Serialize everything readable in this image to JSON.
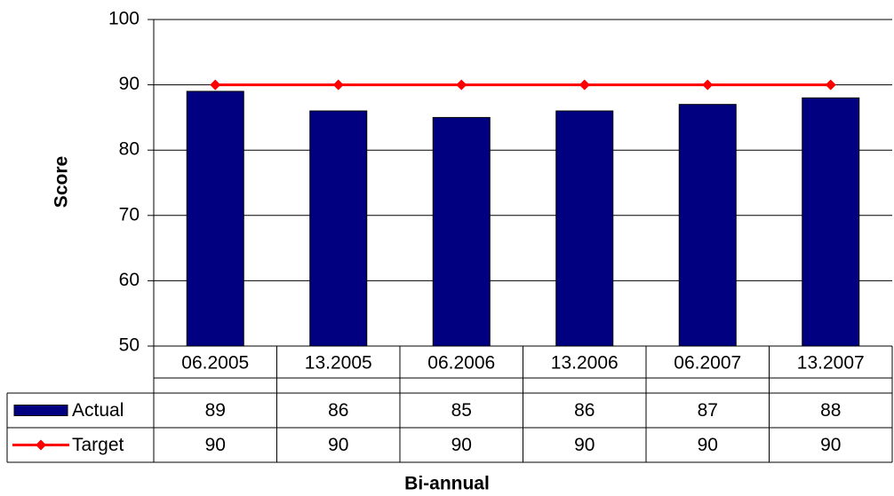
{
  "chart_data": {
    "type": "bar",
    "categories": [
      "06.2005",
      "13.2005",
      "06.2006",
      "13.2006",
      "06.2007",
      "13.2007"
    ],
    "series": [
      {
        "name": "Actual",
        "type": "bar",
        "color": "#000080",
        "values": [
          89,
          86,
          85,
          86,
          87,
          88
        ]
      },
      {
        "name": "Target",
        "type": "line",
        "color": "#ff0000",
        "values": [
          90,
          90,
          90,
          90,
          90,
          90
        ]
      }
    ],
    "x_label": "Bi-annual",
    "y_label": "Score",
    "ylim": [
      50,
      100
    ],
    "yticks": [
      50,
      60,
      70,
      80,
      90,
      100
    ],
    "grid": true,
    "data_table": true
  }
}
